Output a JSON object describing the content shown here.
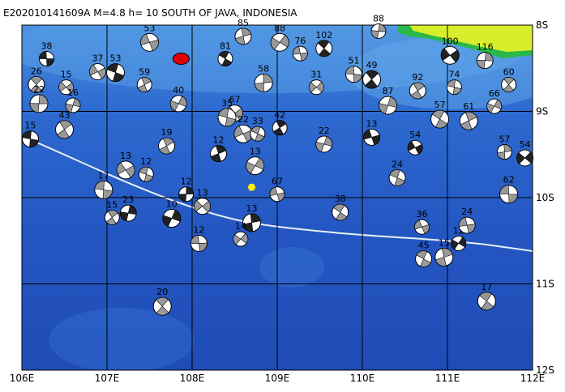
{
  "map": {
    "title": "E202010141609A M=4.8 h= 10 SOUTH OF JAVA, INDONESIA",
    "xlim": [
      106,
      112
    ],
    "ylim": [
      -12,
      -8
    ],
    "xticks": [
      {
        "value": 106,
        "label": "106E"
      },
      {
        "value": 107,
        "label": "107E"
      },
      {
        "value": 108,
        "label": "108E"
      },
      {
        "value": 109,
        "label": "109E"
      },
      {
        "value": 110,
        "label": "110E"
      },
      {
        "value": 111,
        "label": "111E"
      },
      {
        "value": 112,
        "label": "112E"
      }
    ],
    "yticks": [
      {
        "value": -8,
        "label": "8S"
      },
      {
        "value": -9,
        "label": "9S"
      },
      {
        "value": -10,
        "label": "10S"
      },
      {
        "value": -11,
        "label": "11S"
      },
      {
        "value": -12,
        "label": "12S"
      }
    ],
    "main_event": {
      "lon": 107.87,
      "lat": -8.39,
      "color": "#e00000"
    },
    "epicenter": {
      "lon": 108.7,
      "lat": -9.88,
      "color": "#ffee00"
    },
    "events": [
      {
        "depth": 38,
        "lon": 106.29,
        "lat": -8.39
      },
      {
        "depth": 26,
        "lon": 106.17,
        "lat": -8.69
      },
      {
        "depth": 22,
        "lon": 106.2,
        "lat": -8.91
      },
      {
        "depth": 15,
        "lon": 106.52,
        "lat": -8.72
      },
      {
        "depth": 15,
        "lon": 106.1,
        "lat": -9.32
      },
      {
        "depth": 43,
        "lon": 106.5,
        "lat": -9.21
      },
      {
        "depth": 16,
        "lon": 106.6,
        "lat": -8.93
      },
      {
        "depth": 37,
        "lon": 106.89,
        "lat": -8.54
      },
      {
        "depth": 53,
        "lon": 107.1,
        "lat": -8.55
      },
      {
        "depth": 59,
        "lon": 107.44,
        "lat": -8.69
      },
      {
        "depth": 40,
        "lon": 107.84,
        "lat": -8.91
      },
      {
        "depth": 53,
        "lon": 107.5,
        "lat": -8.2
      },
      {
        "depth": 81,
        "lon": 108.39,
        "lat": -8.39
      },
      {
        "depth": 85,
        "lon": 108.6,
        "lat": -8.13
      },
      {
        "depth": 88,
        "lon": 109.03,
        "lat": -8.2
      },
      {
        "depth": 76,
        "lon": 109.27,
        "lat": -8.33
      },
      {
        "depth": 102,
        "lon": 109.55,
        "lat": -8.27
      },
      {
        "depth": 58,
        "lon": 108.84,
        "lat": -8.67
      },
      {
        "depth": 31,
        "lon": 109.46,
        "lat": -8.72
      },
      {
        "depth": 51,
        "lon": 109.9,
        "lat": -8.57
      },
      {
        "depth": 49,
        "lon": 110.11,
        "lat": -8.63
      },
      {
        "depth": 88,
        "lon": 110.19,
        "lat": -8.07
      },
      {
        "depth": 67,
        "lon": 108.5,
        "lat": -9.02
      },
      {
        "depth": 35,
        "lon": 108.41,
        "lat": -9.07
      },
      {
        "depth": 42,
        "lon": 109.03,
        "lat": -9.19
      },
      {
        "depth": 22,
        "lon": 109.55,
        "lat": -9.38
      },
      {
        "depth": 22,
        "lon": 108.6,
        "lat": -9.26
      },
      {
        "depth": 33,
        "lon": 108.77,
        "lat": -9.26
      },
      {
        "depth": 12,
        "lon": 108.31,
        "lat": -9.49
      },
      {
        "depth": 13,
        "lon": 108.74,
        "lat": -9.63
      },
      {
        "depth": 67,
        "lon": 109.0,
        "lat": -9.96
      },
      {
        "depth": 38,
        "lon": 109.74,
        "lat": -10.17
      },
      {
        "depth": 13,
        "lon": 108.7,
        "lat": -10.29
      },
      {
        "depth": 14,
        "lon": 108.57,
        "lat": -10.48
      },
      {
        "depth": 12,
        "lon": 108.08,
        "lat": -10.53
      },
      {
        "depth": 20,
        "lon": 107.65,
        "lat": -11.26
      },
      {
        "depth": 12,
        "lon": 107.93,
        "lat": -9.96
      },
      {
        "depth": 13,
        "lon": 108.12,
        "lat": -10.1
      },
      {
        "depth": 17,
        "lon": 106.96,
        "lat": -9.91
      },
      {
        "depth": 15,
        "lon": 107.06,
        "lat": -10.23
      },
      {
        "depth": 23,
        "lon": 107.25,
        "lat": -10.18
      },
      {
        "depth": 13,
        "lon": 107.22,
        "lat": -9.68
      },
      {
        "depth": 12,
        "lon": 107.46,
        "lat": -9.73
      },
      {
        "depth": 19,
        "lon": 107.7,
        "lat": -9.4
      },
      {
        "depth": 10,
        "lon": 107.76,
        "lat": -10.24
      },
      {
        "depth": 36,
        "lon": 110.7,
        "lat": -10.34
      },
      {
        "depth": 45,
        "lon": 110.72,
        "lat": -10.71
      },
      {
        "depth": 15,
        "lon": 110.96,
        "lat": -10.69
      },
      {
        "depth": 12,
        "lon": 111.13,
        "lat": -10.53
      },
      {
        "depth": 24,
        "lon": 111.23,
        "lat": -10.32
      },
      {
        "depth": 17,
        "lon": 111.46,
        "lat": -11.2
      },
      {
        "depth": 57,
        "lon": 111.67,
        "lat": -9.47
      },
      {
        "depth": 54,
        "lon": 111.91,
        "lat": -9.54
      },
      {
        "depth": 62,
        "lon": 111.72,
        "lat": -9.96
      },
      {
        "depth": 60,
        "lon": 111.72,
        "lat": -8.69
      },
      {
        "depth": 116,
        "lon": 111.44,
        "lat": -8.41
      },
      {
        "depth": 100,
        "lon": 111.03,
        "lat": -8.35
      },
      {
        "depth": 74,
        "lon": 111.08,
        "lat": -8.72
      },
      {
        "depth": 92,
        "lon": 110.65,
        "lat": -8.76
      },
      {
        "depth": 87,
        "lon": 110.3,
        "lat": -8.93
      },
      {
        "depth": 54,
        "lon": 110.62,
        "lat": -9.42
      },
      {
        "depth": 24,
        "lon": 110.41,
        "lat": -9.77
      },
      {
        "depth": 61,
        "lon": 111.25,
        "lat": -9.11
      },
      {
        "depth": 66,
        "lon": 111.55,
        "lat": -8.94
      },
      {
        "depth": 13,
        "lon": 110.11,
        "lat": -9.3
      },
      {
        "depth": 57,
        "lon": 110.91,
        "lat": -9.09
      }
    ]
  }
}
